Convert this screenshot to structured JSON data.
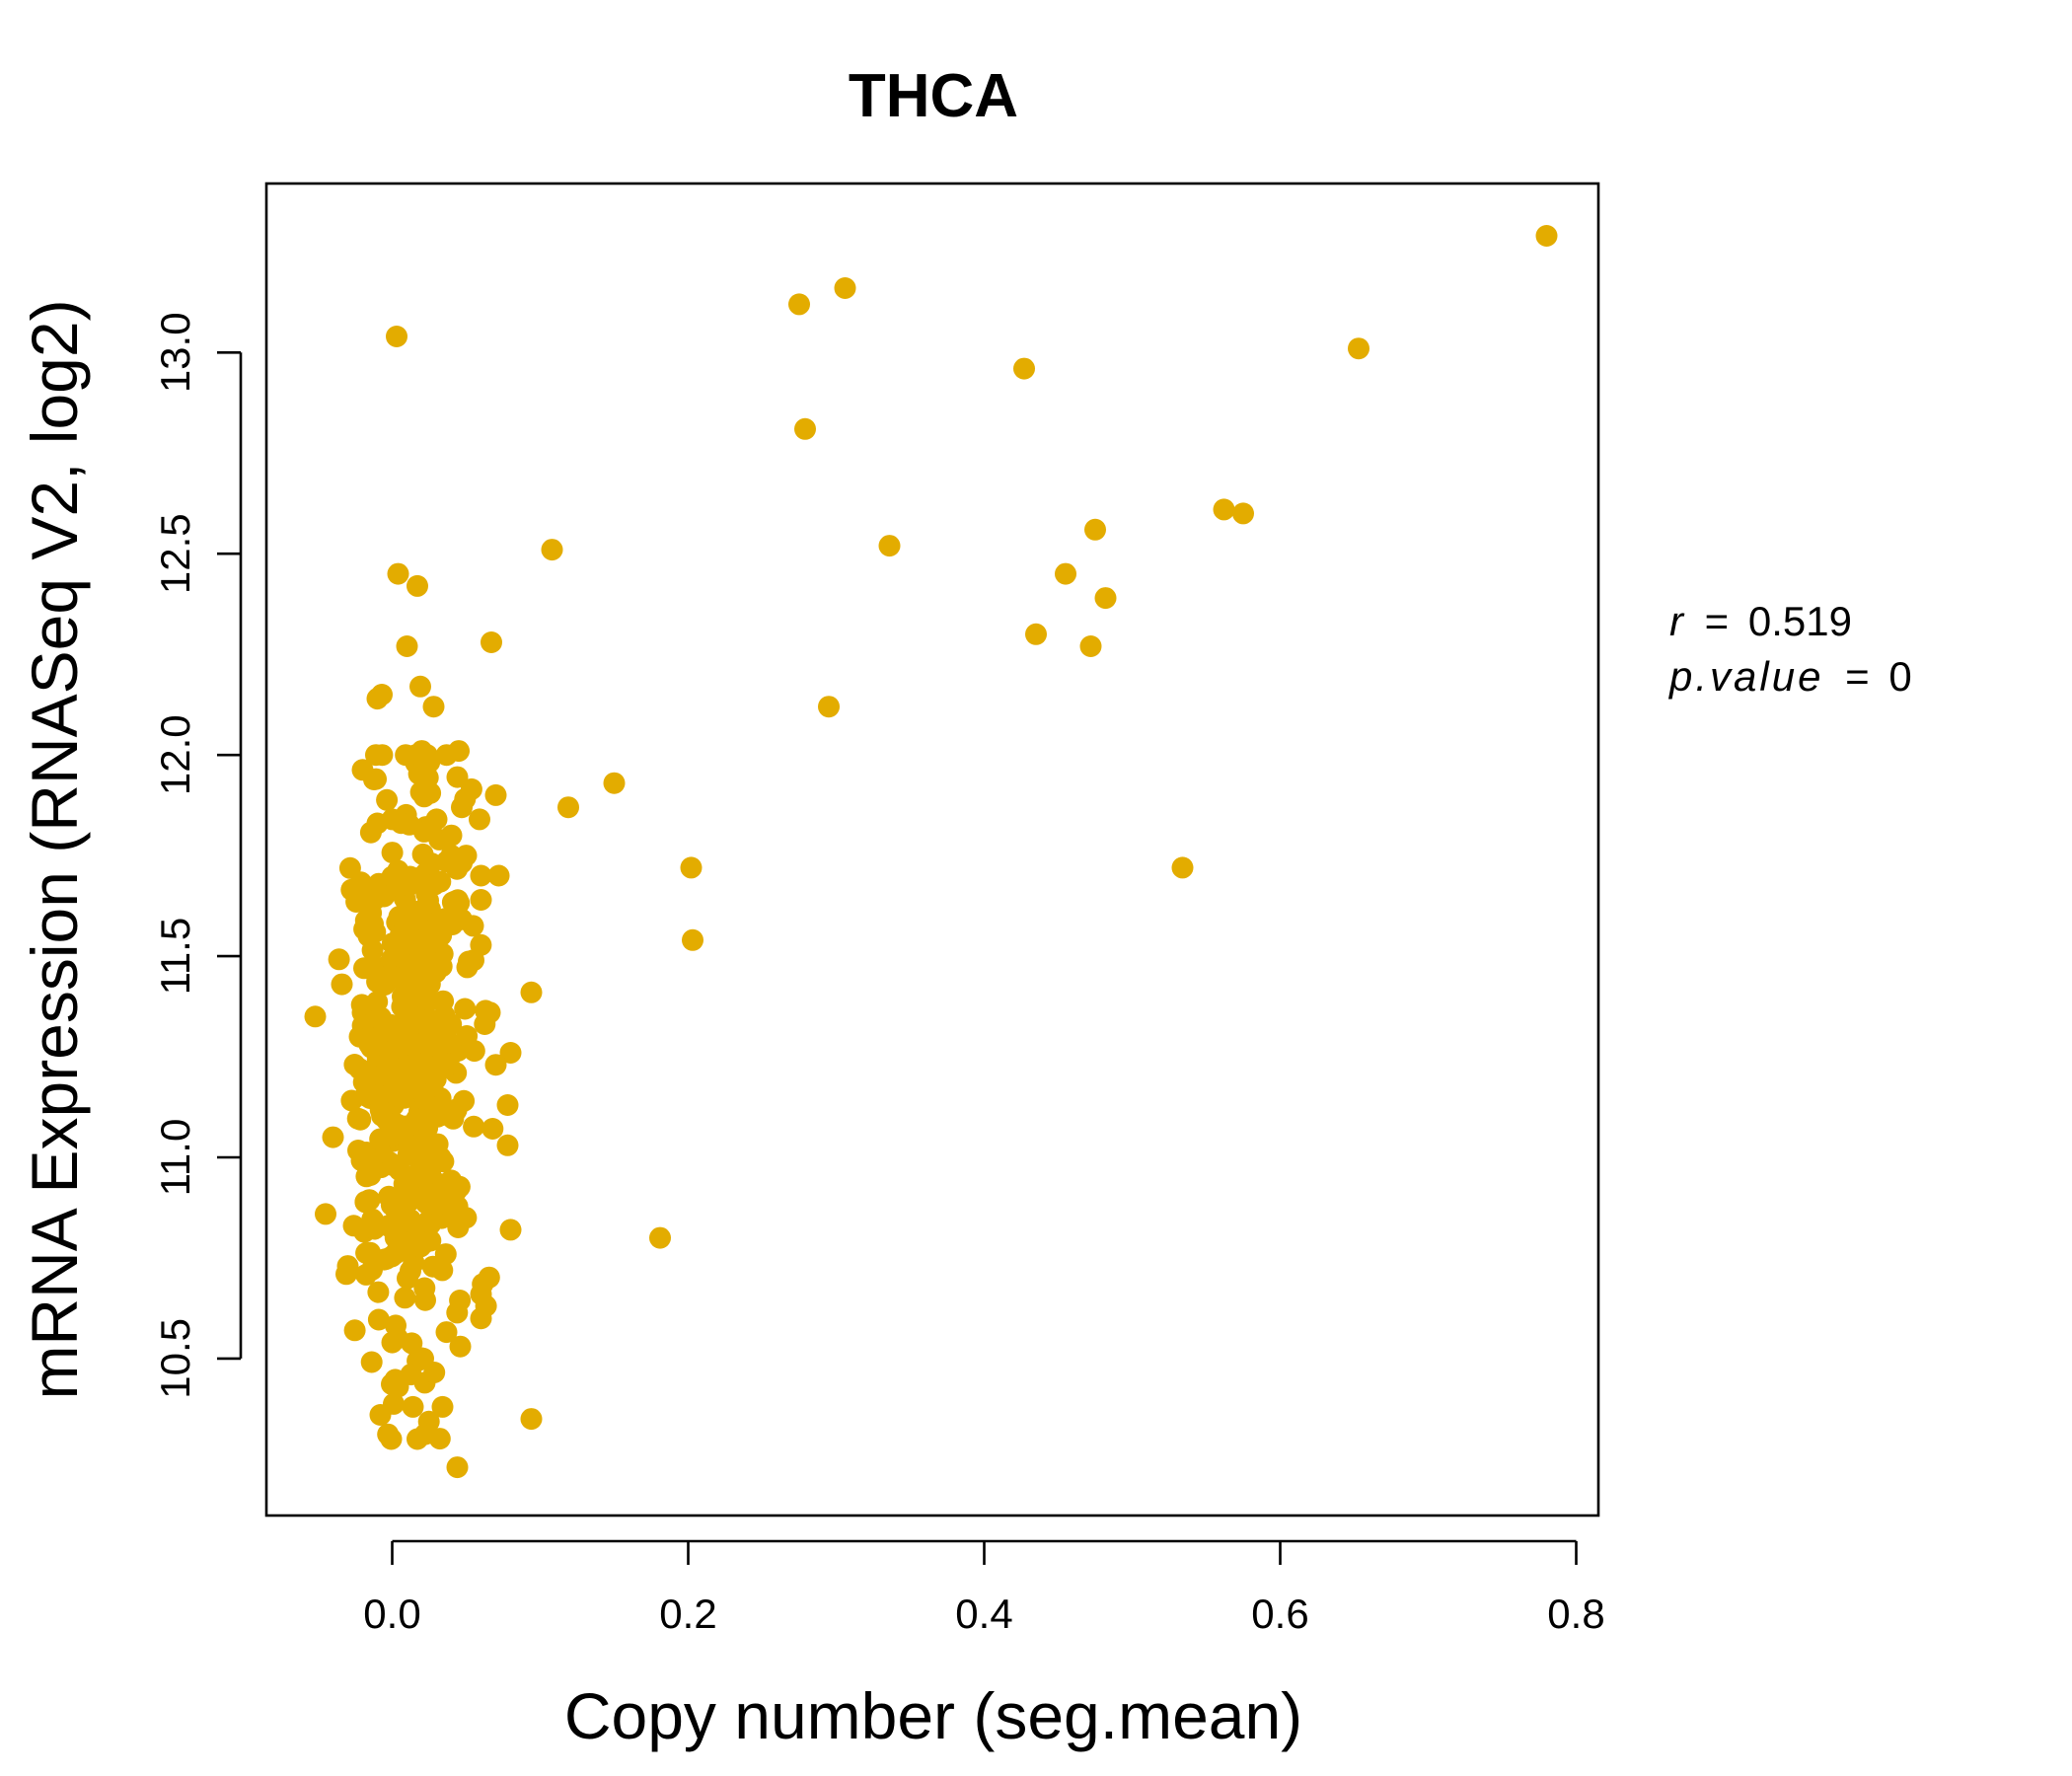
{
  "chart_data": {
    "type": "scatter",
    "title": "THCA",
    "xlabel": "Copy number (seg.mean)",
    "ylabel": "mRNA Expression (RNASeq V2, log2)",
    "xlim": [
      -0.085,
      0.815
    ],
    "ylim": [
      10.11,
      13.42
    ],
    "xticks": [
      {
        "value": 0.0,
        "label": "0.0"
      },
      {
        "value": 0.2,
        "label": "0.2"
      },
      {
        "value": 0.4,
        "label": "0.4"
      },
      {
        "value": 0.6,
        "label": "0.6"
      },
      {
        "value": 0.8,
        "label": "0.8"
      }
    ],
    "yticks": [
      {
        "value": 10.5,
        "label": "10.5"
      },
      {
        "value": 11.0,
        "label": "11.0"
      },
      {
        "value": 11.5,
        "label": "11.5"
      },
      {
        "value": 12.0,
        "label": "12.0"
      },
      {
        "value": 12.5,
        "label": "12.5"
      },
      {
        "value": 13.0,
        "label": "13.0"
      }
    ],
    "color": "#E3AC00",
    "stats": {
      "r_label": "r",
      "r_value": "0.519",
      "p_label": "p.value",
      "p_value": "0",
      "equals": "="
    },
    "cluster": {
      "note": "dense point cloud of approximately 450 samples",
      "center_x": 0.015,
      "spread_x": 0.02,
      "center_y": 11.2,
      "spread_y": 0.35,
      "count": 450
    },
    "points": [
      [
        0.78,
        13.29
      ],
      [
        0.653,
        13.01
      ],
      [
        0.562,
        12.61
      ],
      [
        0.575,
        12.6
      ],
      [
        0.306,
        13.16
      ],
      [
        0.275,
        13.12
      ],
      [
        0.427,
        12.96
      ],
      [
        0.279,
        12.81
      ],
      [
        0.336,
        12.52
      ],
      [
        0.475,
        12.56
      ],
      [
        0.455,
        12.45
      ],
      [
        0.482,
        12.39
      ],
      [
        0.435,
        12.3
      ],
      [
        0.472,
        12.27
      ],
      [
        0.295,
        12.12
      ],
      [
        0.534,
        11.72
      ],
      [
        0.108,
        12.51
      ],
      [
        0.15,
        11.93
      ],
      [
        0.119,
        11.87
      ],
      [
        0.202,
        11.72
      ],
      [
        0.203,
        11.54
      ],
      [
        0.181,
        10.8
      ],
      [
        0.094,
        11.41
      ],
      [
        0.094,
        10.35
      ],
      [
        0.003,
        13.04
      ],
      [
        0.004,
        12.45
      ],
      [
        0.017,
        12.42
      ],
      [
        0.01,
        12.27
      ],
      [
        0.067,
        12.28
      ],
      [
        0.019,
        12.17
      ],
      [
        0.028,
        12.12
      ],
      [
        -0.007,
        12.15
      ],
      [
        -0.01,
        12.14
      ],
      [
        0.045,
        12.01
      ],
      [
        0.02,
        12.01
      ],
      [
        -0.011,
        12.0
      ],
      [
        0.016,
        11.98
      ],
      [
        0.07,
        11.9
      ],
      [
        0.059,
        11.84
      ],
      [
        0.047,
        11.87
      ],
      [
        0.072,
        11.7
      ],
      [
        0.06,
        11.7
      ],
      [
        0.04,
        11.75
      ],
      [
        0.05,
        11.75
      ],
      [
        0.06,
        11.64
      ],
      [
        0.03,
        11.84
      ],
      [
        0.04,
        11.8
      ],
      [
        0.055,
        11.49
      ],
      [
        0.08,
        11.26
      ],
      [
        0.07,
        11.23
      ],
      [
        0.066,
        11.36
      ],
      [
        0.078,
        11.13
      ],
      [
        0.078,
        11.03
      ],
      [
        0.08,
        10.82
      ],
      [
        0.06,
        10.6
      ],
      [
        0.06,
        10.66
      ],
      [
        0.046,
        10.53
      ],
      [
        0.044,
        10.23
      ],
      [
        0.017,
        10.3
      ],
      [
        0.034,
        10.38
      ],
      [
        -0.008,
        10.36
      ],
      [
        0.014,
        10.38
      ],
      [
        0.022,
        10.44
      ],
      [
        0.021,
        10.5
      ],
      [
        0.004,
        10.43
      ],
      [
        0.0,
        10.54
      ],
      [
        -0.052,
        11.35
      ],
      [
        -0.04,
        11.05
      ],
      [
        -0.034,
        11.43
      ],
      [
        -0.031,
        10.71
      ],
      [
        -0.03,
        10.73
      ],
      [
        -0.026,
        10.83
      ],
      [
        -0.022,
        11.22
      ],
      [
        -0.022,
        11.3
      ],
      [
        -0.02,
        11.36
      ],
      [
        -0.019,
        11.47
      ],
      [
        -0.018,
        10.89
      ],
      [
        -0.017,
        10.98
      ],
      [
        -0.016,
        11.55
      ],
      [
        -0.014,
        11.67
      ],
      [
        -0.013,
        11.58
      ],
      [
        -0.011,
        11.94
      ],
      [
        -0.01,
        11.83
      ],
      [
        -0.009,
        11.68
      ]
    ]
  }
}
